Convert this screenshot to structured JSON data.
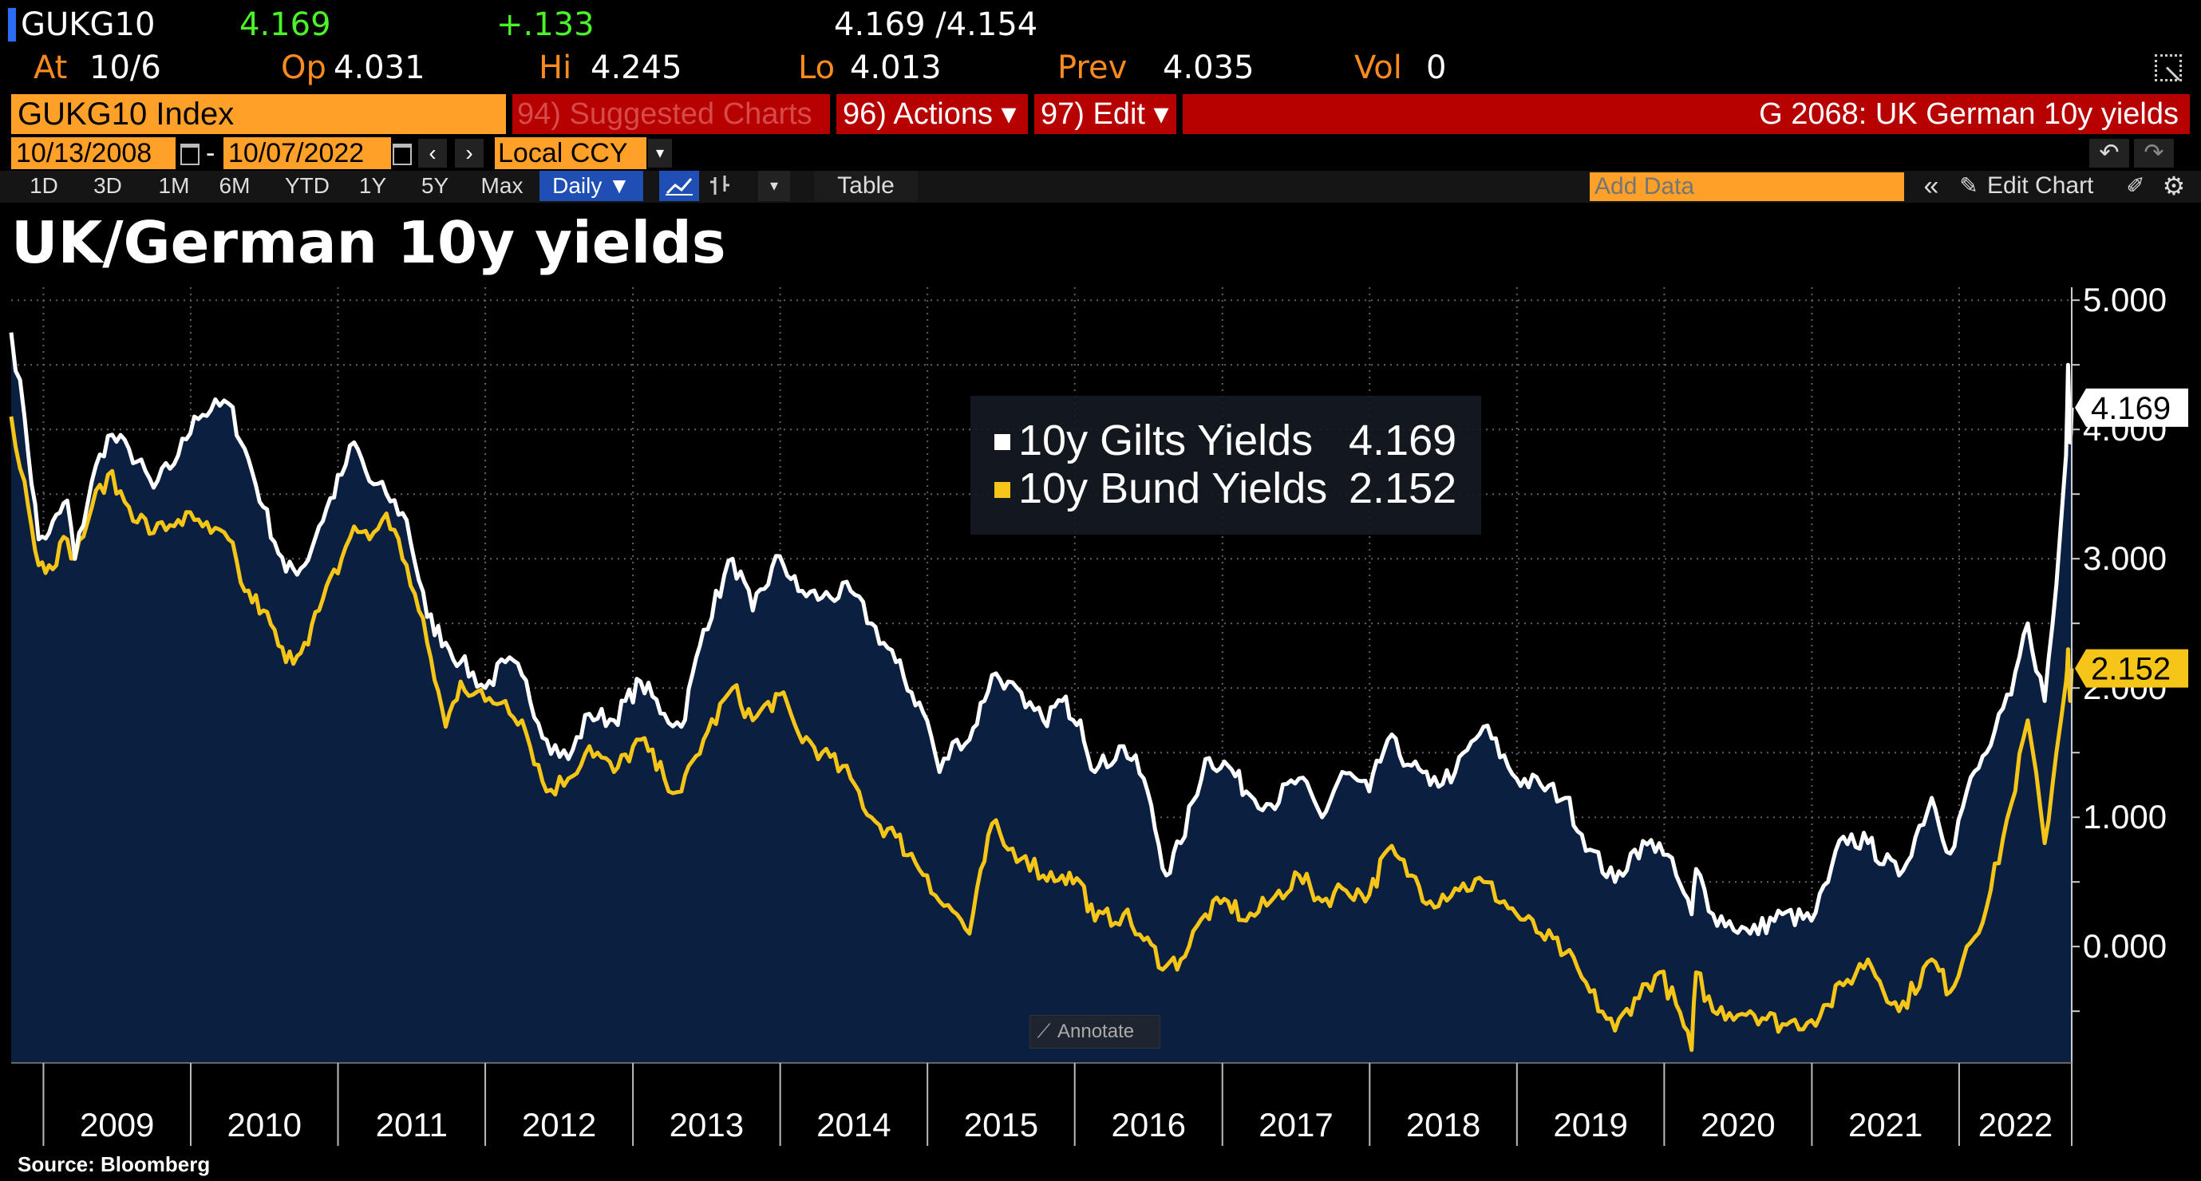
{
  "quote": {
    "ticker": "GUKG10",
    "last": "4.169",
    "change": "+.133",
    "bid_ask": "4.169 /4.154",
    "at_label": "At",
    "at_value": "10/6",
    "op_label": "Op",
    "op_value": "4.031",
    "hi_label": "Hi",
    "hi_value": "4.245",
    "lo_label": "Lo",
    "lo_value": "4.013",
    "prev_label": "Prev",
    "prev_value": "4.035",
    "vol_label": "Vol",
    "vol_value": "0"
  },
  "menubar": {
    "security": "GUKG10 Index",
    "suggested": "94) Suggested Charts",
    "actions": "96) Actions ▾",
    "edit": "97) Edit ▾",
    "function_title": "G 2068: UK German 10y yields"
  },
  "range": {
    "start": "10/13/2008",
    "end": "10/07/2022",
    "currency": "Local CCY",
    "sep": "-"
  },
  "toolbar": {
    "periods": [
      "1D",
      "3D",
      "1M",
      "6M",
      "YTD",
      "1Y",
      "5Y",
      "Max"
    ],
    "frequency": "Daily ▼",
    "table": "Table",
    "add_data_placeholder": "Add Data",
    "edit_chart": "Edit Chart"
  },
  "annotate": "Annotate",
  "footer": {
    "source": "Source: Bloomberg"
  },
  "colors": {
    "gilt": "#ffffff",
    "bund": "#f5c518",
    "area": "#0b1f40",
    "accent_orange": "#ffa028",
    "menu_red": "#b70000"
  },
  "chart_data": {
    "type": "line",
    "title": "UK/German 10y yields",
    "ylim": [
      -0.9,
      5.1
    ],
    "y_ticks": [
      "5.000",
      "4.000",
      "3.000",
      "2.000",
      "1.000",
      "0.000"
    ],
    "y_tick_values": [
      5,
      4,
      3,
      2,
      1,
      0
    ],
    "x_ticks": [
      "2009",
      "2010",
      "2011",
      "2012",
      "2013",
      "2014",
      "2015",
      "2016",
      "2017",
      "2018",
      "2019",
      "2020",
      "2021",
      "2022"
    ],
    "x_range": [
      "2008-10-13",
      "2022-10-07"
    ],
    "legend_position": "top-center",
    "series": [
      {
        "name": "10y Gilts Yields",
        "last": "4.169",
        "points": [
          [
            "2008-10-13",
            4.75
          ],
          [
            "2008-11-15",
            4.1
          ],
          [
            "2008-12-20",
            3.15
          ],
          [
            "2009-01-15",
            3.2
          ],
          [
            "2009-03-01",
            3.45
          ],
          [
            "2009-03-20",
            3.0
          ],
          [
            "2009-05-01",
            3.6
          ],
          [
            "2009-06-10",
            3.95
          ],
          [
            "2009-08-01",
            3.85
          ],
          [
            "2009-10-01",
            3.55
          ],
          [
            "2009-12-01",
            3.8
          ],
          [
            "2010-01-10",
            4.1
          ],
          [
            "2010-02-20",
            4.15
          ],
          [
            "2010-04-05",
            4.2
          ],
          [
            "2010-05-15",
            3.85
          ],
          [
            "2010-06-30",
            3.4
          ],
          [
            "2010-08-25",
            2.9
          ],
          [
            "2010-10-10",
            2.95
          ],
          [
            "2010-11-15",
            3.25
          ],
          [
            "2011-01-10",
            3.65
          ],
          [
            "2011-02-10",
            3.9
          ],
          [
            "2011-03-20",
            3.6
          ],
          [
            "2011-05-01",
            3.5
          ],
          [
            "2011-06-20",
            3.3
          ],
          [
            "2011-08-10",
            2.55
          ],
          [
            "2011-09-25",
            2.35
          ],
          [
            "2011-11-01",
            2.2
          ],
          [
            "2012-01-01",
            2.0
          ],
          [
            "2012-02-20",
            2.2
          ],
          [
            "2012-04-01",
            2.1
          ],
          [
            "2012-06-01",
            1.6
          ],
          [
            "2012-07-25",
            1.45
          ],
          [
            "2012-09-15",
            1.8
          ],
          [
            "2012-11-15",
            1.75
          ],
          [
            "2013-01-20",
            2.05
          ],
          [
            "2013-03-20",
            1.8
          ],
          [
            "2013-05-01",
            1.7
          ],
          [
            "2013-06-25",
            2.45
          ],
          [
            "2013-09-05",
            3.0
          ],
          [
            "2013-10-25",
            2.6
          ],
          [
            "2013-12-31",
            3.02
          ],
          [
            "2014-02-15",
            2.75
          ],
          [
            "2014-04-15",
            2.7
          ],
          [
            "2014-06-25",
            2.75
          ],
          [
            "2014-08-15",
            2.5
          ],
          [
            "2014-10-15",
            2.2
          ],
          [
            "2014-12-31",
            1.75
          ],
          [
            "2015-01-31",
            1.35
          ],
          [
            "2015-03-15",
            1.6
          ],
          [
            "2015-04-15",
            1.6
          ],
          [
            "2015-06-10",
            2.1
          ],
          [
            "2015-07-20",
            2.05
          ],
          [
            "2015-09-01",
            1.85
          ],
          [
            "2015-10-15",
            1.75
          ],
          [
            "2015-12-01",
            1.9
          ],
          [
            "2016-01-15",
            1.75
          ],
          [
            "2016-02-20",
            1.35
          ],
          [
            "2016-05-01",
            1.55
          ],
          [
            "2016-06-20",
            1.3
          ],
          [
            "2016-08-15",
            0.55
          ],
          [
            "2016-09-20",
            0.8
          ],
          [
            "2016-11-20",
            1.45
          ],
          [
            "2017-01-15",
            1.4
          ],
          [
            "2017-03-01",
            1.2
          ],
          [
            "2017-05-01",
            1.1
          ],
          [
            "2017-07-10",
            1.3
          ],
          [
            "2017-09-05",
            1.0
          ],
          [
            "2017-10-25",
            1.35
          ],
          [
            "2017-12-31",
            1.2
          ],
          [
            "2018-02-15",
            1.6
          ],
          [
            "2018-04-15",
            1.4
          ],
          [
            "2018-05-31",
            1.25
          ],
          [
            "2018-08-01",
            1.35
          ],
          [
            "2018-10-10",
            1.7
          ],
          [
            "2018-12-31",
            1.3
          ],
          [
            "2019-03-01",
            1.25
          ],
          [
            "2019-05-01",
            1.15
          ],
          [
            "2019-07-01",
            0.75
          ],
          [
            "2019-09-01",
            0.5
          ],
          [
            "2019-10-20",
            0.75
          ],
          [
            "2019-12-20",
            0.8
          ],
          [
            "2020-01-31",
            0.55
          ],
          [
            "2020-03-09",
            0.25
          ],
          [
            "2020-03-20",
            0.6
          ],
          [
            "2020-05-01",
            0.25
          ],
          [
            "2020-08-01",
            0.1
          ],
          [
            "2020-10-20",
            0.25
          ],
          [
            "2020-12-31",
            0.2
          ],
          [
            "2021-02-10",
            0.5
          ],
          [
            "2021-03-20",
            0.85
          ],
          [
            "2021-05-20",
            0.8
          ],
          [
            "2021-08-05",
            0.55
          ],
          [
            "2021-10-25",
            1.15
          ],
          [
            "2021-12-10",
            0.72
          ],
          [
            "2022-01-20",
            1.2
          ],
          [
            "2022-03-10",
            1.5
          ],
          [
            "2022-05-10",
            1.95
          ],
          [
            "2022-06-20",
            2.5
          ],
          [
            "2022-08-01",
            1.9
          ],
          [
            "2022-08-30",
            2.8
          ],
          [
            "2022-09-23",
            3.8
          ],
          [
            "2022-09-28",
            4.5
          ],
          [
            "2022-10-03",
            3.9
          ],
          [
            "2022-10-07",
            4.169
          ]
        ]
      },
      {
        "name": "10y Bund Yields",
        "last": "2.152",
        "points": [
          [
            "2008-10-13",
            4.1
          ],
          [
            "2008-11-15",
            3.6
          ],
          [
            "2008-12-20",
            2.95
          ],
          [
            "2009-01-15",
            2.95
          ],
          [
            "2009-03-01",
            3.15
          ],
          [
            "2009-03-20",
            3.0
          ],
          [
            "2009-05-01",
            3.4
          ],
          [
            "2009-06-10",
            3.65
          ],
          [
            "2009-08-01",
            3.4
          ],
          [
            "2009-10-01",
            3.2
          ],
          [
            "2009-12-01",
            3.3
          ],
          [
            "2010-01-10",
            3.3
          ],
          [
            "2010-02-20",
            3.2
          ],
          [
            "2010-04-05",
            3.15
          ],
          [
            "2010-05-15",
            2.75
          ],
          [
            "2010-06-30",
            2.6
          ],
          [
            "2010-08-25",
            2.2
          ],
          [
            "2010-10-10",
            2.35
          ],
          [
            "2010-11-15",
            2.6
          ],
          [
            "2011-01-10",
            3.0
          ],
          [
            "2011-02-10",
            3.25
          ],
          [
            "2011-03-20",
            3.15
          ],
          [
            "2011-05-01",
            3.35
          ],
          [
            "2011-06-20",
            2.95
          ],
          [
            "2011-08-10",
            2.35
          ],
          [
            "2011-09-25",
            1.7
          ],
          [
            "2011-11-01",
            2.05
          ],
          [
            "2012-01-01",
            1.9
          ],
          [
            "2012-02-20",
            1.9
          ],
          [
            "2012-04-01",
            1.75
          ],
          [
            "2012-06-01",
            1.2
          ],
          [
            "2012-07-25",
            1.3
          ],
          [
            "2012-09-15",
            1.55
          ],
          [
            "2012-11-15",
            1.35
          ],
          [
            "2013-01-20",
            1.6
          ],
          [
            "2013-03-20",
            1.3
          ],
          [
            "2013-05-01",
            1.2
          ],
          [
            "2013-06-25",
            1.6
          ],
          [
            "2013-09-05",
            2.0
          ],
          [
            "2013-10-25",
            1.75
          ],
          [
            "2013-12-31",
            1.95
          ],
          [
            "2014-02-15",
            1.65
          ],
          [
            "2014-04-15",
            1.5
          ],
          [
            "2014-06-25",
            1.3
          ],
          [
            "2014-08-15",
            1.0
          ],
          [
            "2014-10-15",
            0.85
          ],
          [
            "2014-12-31",
            0.55
          ],
          [
            "2015-01-31",
            0.35
          ],
          [
            "2015-03-15",
            0.25
          ],
          [
            "2015-04-15",
            0.1
          ],
          [
            "2015-06-10",
            0.95
          ],
          [
            "2015-07-20",
            0.75
          ],
          [
            "2015-09-01",
            0.7
          ],
          [
            "2015-10-15",
            0.55
          ],
          [
            "2015-12-01",
            0.55
          ],
          [
            "2016-01-15",
            0.5
          ],
          [
            "2016-02-20",
            0.2
          ],
          [
            "2016-05-01",
            0.25
          ],
          [
            "2016-06-20",
            0.05
          ],
          [
            "2016-08-15",
            -0.15
          ],
          [
            "2016-09-20",
            -0.1
          ],
          [
            "2016-11-20",
            0.25
          ],
          [
            "2017-01-15",
            0.35
          ],
          [
            "2017-03-01",
            0.2
          ],
          [
            "2017-05-01",
            0.35
          ],
          [
            "2017-07-10",
            0.55
          ],
          [
            "2017-09-05",
            0.35
          ],
          [
            "2017-10-25",
            0.45
          ],
          [
            "2017-12-31",
            0.4
          ],
          [
            "2018-02-15",
            0.75
          ],
          [
            "2018-04-15",
            0.55
          ],
          [
            "2018-05-31",
            0.35
          ],
          [
            "2018-08-01",
            0.45
          ],
          [
            "2018-10-10",
            0.5
          ],
          [
            "2018-12-31",
            0.25
          ],
          [
            "2019-03-01",
            0.1
          ],
          [
            "2019-05-01",
            -0.05
          ],
          [
            "2019-07-01",
            -0.35
          ],
          [
            "2019-09-01",
            -0.65
          ],
          [
            "2019-10-20",
            -0.4
          ],
          [
            "2019-12-20",
            -0.2
          ],
          [
            "2020-01-31",
            -0.45
          ],
          [
            "2020-03-09",
            -0.8
          ],
          [
            "2020-03-20",
            -0.2
          ],
          [
            "2020-05-01",
            -0.5
          ],
          [
            "2020-08-01",
            -0.5
          ],
          [
            "2020-10-20",
            -0.6
          ],
          [
            "2020-12-31",
            -0.57
          ],
          [
            "2021-02-10",
            -0.45
          ],
          [
            "2021-03-20",
            -0.3
          ],
          [
            "2021-05-20",
            -0.1
          ],
          [
            "2021-08-05",
            -0.5
          ],
          [
            "2021-10-25",
            -0.1
          ],
          [
            "2021-12-10",
            -0.35
          ],
          [
            "2022-01-20",
            0.0
          ],
          [
            "2022-03-10",
            0.3
          ],
          [
            "2022-05-10",
            1.1
          ],
          [
            "2022-06-20",
            1.75
          ],
          [
            "2022-08-01",
            0.8
          ],
          [
            "2022-08-30",
            1.5
          ],
          [
            "2022-09-23",
            2.05
          ],
          [
            "2022-09-28",
            2.3
          ],
          [
            "2022-10-03",
            1.9
          ],
          [
            "2022-10-07",
            2.152
          ]
        ]
      }
    ]
  }
}
